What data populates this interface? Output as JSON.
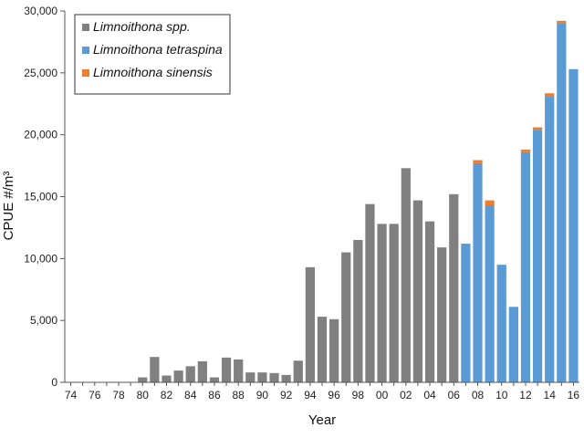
{
  "chart_data": {
    "type": "bar",
    "stacked": true,
    "title": "",
    "xlabel": "Year",
    "ylabel": "CPUE #/m³",
    "ylim": [
      0,
      30000
    ],
    "yticks": [
      "0",
      "5,000",
      "10,000",
      "15,000",
      "20,000",
      "25,000",
      "30,000"
    ],
    "grid": false,
    "legend_position": "top-left",
    "categories": [
      "74",
      "75",
      "76",
      "77",
      "78",
      "79",
      "80",
      "81",
      "82",
      "83",
      "84",
      "85",
      "86",
      "87",
      "88",
      "89",
      "90",
      "91",
      "92",
      "93",
      "94",
      "95",
      "96",
      "97",
      "98",
      "99",
      "00",
      "01",
      "02",
      "03",
      "04",
      "05",
      "06",
      "07",
      "08",
      "09",
      "10",
      "11",
      "12",
      "13",
      "14",
      "15",
      "16"
    ],
    "xtick_labels": [
      "74",
      "76",
      "78",
      "80",
      "82",
      "84",
      "86",
      "88",
      "90",
      "92",
      "94",
      "96",
      "98",
      "00",
      "02",
      "04",
      "06",
      "08",
      "10",
      "12",
      "14",
      "16"
    ],
    "series": [
      {
        "name": "Limnoithona spp.",
        "color": "#808080",
        "values": [
          0,
          0,
          0,
          0,
          0,
          0,
          400,
          2050,
          550,
          950,
          1300,
          1700,
          400,
          2000,
          1850,
          800,
          800,
          750,
          600,
          1750,
          9300,
          5300,
          5100,
          10500,
          11500,
          14400,
          12800,
          12800,
          17300,
          14700,
          13000,
          10900,
          15200,
          0,
          0,
          0,
          0,
          0,
          0,
          0,
          0,
          0,
          0
        ]
      },
      {
        "name": "Limnoithona tetraspina",
        "color": "#5B9BD5",
        "values": [
          0,
          0,
          0,
          0,
          0,
          0,
          0,
          0,
          0,
          0,
          0,
          0,
          0,
          0,
          0,
          0,
          0,
          0,
          0,
          0,
          0,
          0,
          0,
          0,
          0,
          0,
          0,
          0,
          0,
          0,
          0,
          0,
          0,
          11200,
          17700,
          14300,
          9500,
          6100,
          18600,
          20400,
          23100,
          29000,
          25300
        ]
      },
      {
        "name": "Limnoithona sinensis",
        "color": "#ED7D31",
        "values": [
          0,
          0,
          0,
          0,
          0,
          0,
          0,
          0,
          0,
          0,
          0,
          0,
          0,
          0,
          0,
          0,
          0,
          0,
          0,
          0,
          0,
          0,
          0,
          0,
          0,
          0,
          0,
          0,
          0,
          0,
          0,
          0,
          0,
          0,
          250,
          400,
          0,
          0,
          200,
          200,
          250,
          200,
          0
        ]
      }
    ]
  }
}
